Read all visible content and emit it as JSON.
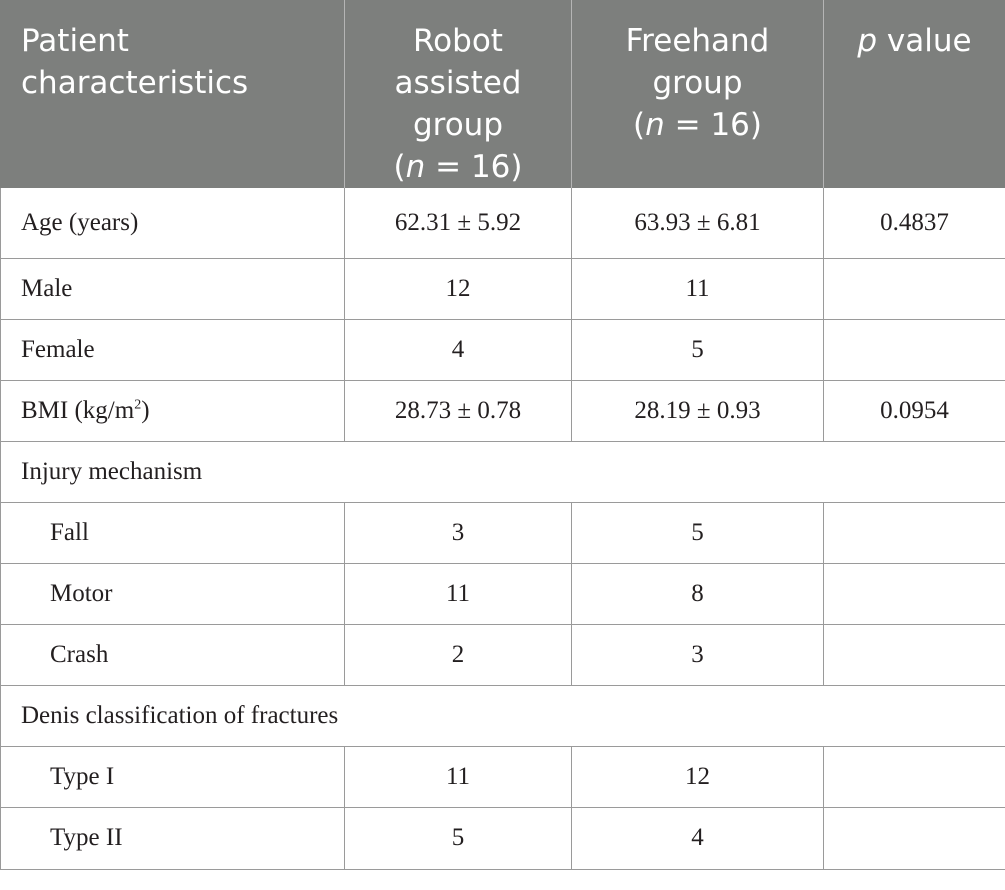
{
  "header": {
    "col1": [
      "Patient",
      "characteristics"
    ],
    "col2": [
      "Robot",
      "assisted",
      "group"
    ],
    "col2_n": {
      "prefix": "(",
      "var": "n",
      "rest": " = 16)"
    },
    "col3": [
      "Freehand",
      "group"
    ],
    "col3_n": {
      "prefix": "(",
      "var": "n",
      "rest": " = 16)"
    },
    "col4": {
      "var": "p",
      "rest": " value"
    }
  },
  "rows": [
    {
      "label": "Age (years)",
      "robot": "62.31 ± 5.92",
      "freehand": "63.93 ± 6.81",
      "p": "0.4837"
    },
    {
      "label": "Male",
      "robot": "12",
      "freehand": "11",
      "p": ""
    },
    {
      "label": "Female",
      "robot": "4",
      "freehand": "5",
      "p": ""
    },
    {
      "label_main": "BMI (kg/m",
      "label_sup": "2",
      "label_end": ")",
      "robot": "28.73 ± 0.78",
      "freehand": "28.19 ± 0.93",
      "p": "0.0954"
    },
    {
      "section": "Injury mechanism"
    },
    {
      "label": "Fall",
      "robot": "3",
      "freehand": "5",
      "p": ""
    },
    {
      "label": "Motor",
      "robot": "11",
      "freehand": "8",
      "p": ""
    },
    {
      "label": "Crash",
      "robot": "2",
      "freehand": "3",
      "p": ""
    },
    {
      "section": "Denis classification of fractures"
    },
    {
      "label": "Type I",
      "robot": "11",
      "freehand": "12",
      "p": ""
    },
    {
      "label": "Type II",
      "robot": "5",
      "freehand": "4",
      "p": ""
    }
  ]
}
